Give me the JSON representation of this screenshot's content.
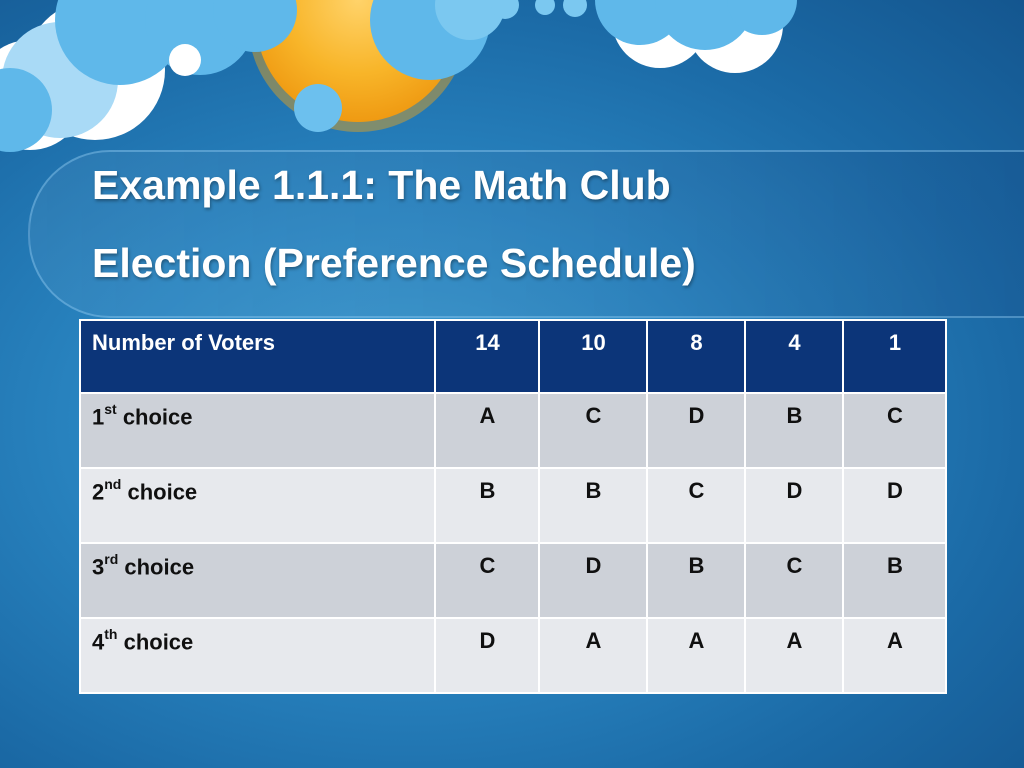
{
  "slide": {
    "title_line1": "Example 1.1.1:  The Math Club",
    "title_line2": "Election (Preference Schedule)"
  },
  "table": {
    "header_label": "Number of Voters",
    "voter_counts": [
      "14",
      "10",
      "8",
      "4",
      "1"
    ],
    "rows": [
      {
        "ordinal": "1",
        "suffix": "st",
        "word": " choice",
        "values": [
          "A",
          "C",
          "D",
          "B",
          "C"
        ]
      },
      {
        "ordinal": "2",
        "suffix": "nd",
        "word": " choice",
        "values": [
          "B",
          "B",
          "C",
          "D",
          "D"
        ]
      },
      {
        "ordinal": "3",
        "suffix": "rd",
        "word": " choice",
        "values": [
          "C",
          "D",
          "B",
          "C",
          "B"
        ]
      },
      {
        "ordinal": "4",
        "suffix": "th",
        "word": " choice",
        "values": [
          "D",
          "A",
          "A",
          "A",
          "A"
        ]
      }
    ]
  },
  "colors": {
    "background": "#2a86c2",
    "header_fill": "#0c3579",
    "row_odd": "#cdd1d8",
    "row_even": "#e7e9ed",
    "sun": "#f5a91c",
    "cloud_light": "#5fb8ea"
  },
  "icons": [
    "sun-graphic",
    "cloud-graphic"
  ]
}
